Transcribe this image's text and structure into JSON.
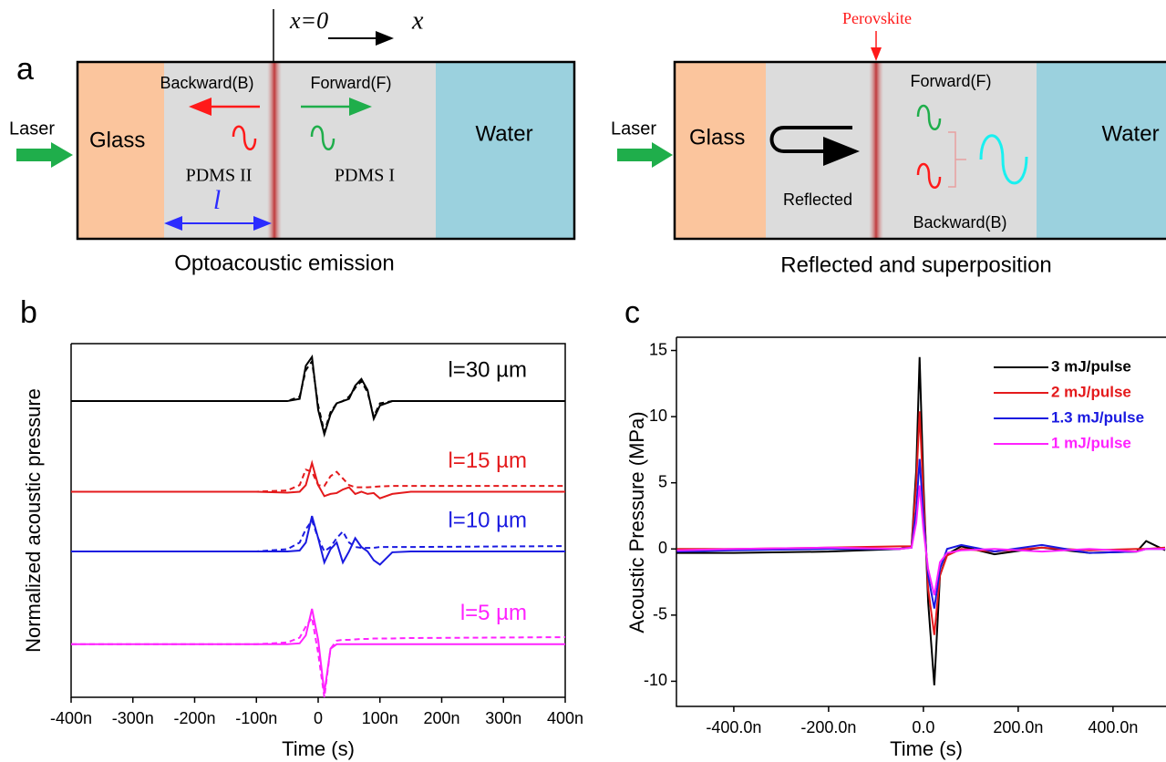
{
  "diagram": {
    "panel_label": "a",
    "left": {
      "x_origin": "x=0",
      "x_axis": "x",
      "backward": "Backward(B)",
      "forward": "Forward(F)",
      "laser": "Laser",
      "glass": "Glass",
      "water": "Water",
      "pdms_2": "PDMS II",
      "pdms_1": "PDMS I",
      "thickness": "l",
      "caption": "Optoacoustic emission"
    },
    "right": {
      "perovskite": "Perovskite",
      "laser": "Laser",
      "glass": "Glass",
      "reflected": "Reflected",
      "forward": "Forward(F)",
      "backward": "Backward(B)",
      "water": "Water",
      "caption": "Reflected and superposition"
    }
  },
  "chart_data": [
    {
      "type": "line",
      "panel_label": "b",
      "xlabel": "Time (s)",
      "ylabel": "Normalized acoustic pressure",
      "x": [
        -4e-07,
        -1e-07,
        -5e-08,
        -3e-08,
        -2e-08,
        -1e-08,
        0,
        1e-08,
        2e-08,
        3e-08,
        4e-08,
        5e-08,
        6e-08,
        7e-08,
        8e-08,
        9e-08,
        1e-07,
        1.2e-07,
        1.5e-07,
        4e-07
      ],
      "xlim": [
        -4e-07,
        4e-07
      ],
      "xticks": [
        {
          "value": -4e-07,
          "label": "-400n"
        },
        {
          "value": -3e-07,
          "label": "-300n"
        },
        {
          "value": -2e-07,
          "label": "-200n"
        },
        {
          "value": -1e-07,
          "label": "-100n"
        },
        0,
        {
          "value": 1e-07,
          "label": "100n"
        },
        {
          "value": 2e-07,
          "label": "200n"
        },
        {
          "value": 3e-07,
          "label": "300n"
        },
        {
          "value": 4e-07,
          "label": "400n"
        }
      ],
      "ylim": [
        0,
        8
      ],
      "series": [
        {
          "name": "l=30 µm",
          "color": "#000000",
          "values": [
            6.7,
            6.7,
            6.7,
            6.75,
            7.5,
            7.7,
            6.5,
            5.95,
            6.4,
            6.65,
            6.7,
            6.75,
            7.05,
            7.2,
            6.95,
            6.3,
            6.6,
            6.7,
            6.7,
            6.7
          ]
        },
        {
          "color": "#000000",
          "dashed": true,
          "values": [
            6.7,
            6.7,
            6.7,
            6.8,
            7.4,
            7.6,
            6.6,
            6.0,
            6.45,
            6.65,
            6.7,
            6.8,
            7.0,
            7.15,
            6.9,
            6.35,
            6.65,
            6.7,
            6.7,
            6.7
          ]
        },
        {
          "name": "l=15 µm",
          "color": "#e41a1c",
          "values": [
            4.65,
            4.65,
            4.63,
            4.65,
            4.8,
            5.3,
            4.8,
            4.55,
            4.6,
            4.62,
            4.7,
            4.75,
            4.6,
            4.65,
            4.6,
            4.62,
            4.5,
            4.6,
            4.65,
            4.65
          ]
        },
        {
          "color": "#e41a1c",
          "dashed": true,
          "values": [
            4.65,
            4.65,
            4.68,
            4.8,
            5.15,
            5.1,
            4.8,
            4.78,
            5.0,
            5.1,
            4.95,
            4.8,
            4.75,
            4.75,
            4.75,
            4.76,
            4.77,
            4.78,
            4.78,
            4.78
          ]
        },
        {
          "name": "l=10 µm",
          "color": "#1a1ae0",
          "values": [
            3.3,
            3.3,
            3.3,
            3.32,
            3.5,
            4.1,
            3.6,
            3.05,
            3.35,
            3.5,
            3.05,
            3.3,
            3.6,
            3.4,
            3.3,
            3.1,
            3.0,
            3.28,
            3.3,
            3.3
          ]
        },
        {
          "color": "#1a1ae0",
          "dashed": true,
          "values": [
            3.3,
            3.3,
            3.35,
            3.5,
            3.8,
            4.0,
            3.6,
            3.3,
            3.4,
            3.6,
            3.75,
            3.5,
            3.4,
            3.38,
            3.38,
            3.38,
            3.4,
            3.4,
            3.4,
            3.42
          ]
        },
        {
          "name": "l=5 µm",
          "color": "#ff22ff",
          "values": [
            1.2,
            1.2,
            1.2,
            1.22,
            1.4,
            2.0,
            1.3,
            0.1,
            1.1,
            1.2,
            1.2,
            1.2,
            1.2,
            1.2,
            1.2,
            1.2,
            1.2,
            1.2,
            1.2,
            1.2
          ]
        },
        {
          "color": "#ff22ff",
          "dashed": true,
          "values": [
            1.2,
            1.2,
            1.24,
            1.35,
            1.6,
            1.8,
            1.0,
            0.0,
            1.1,
            1.28,
            1.3,
            1.3,
            1.31,
            1.32,
            1.32,
            1.33,
            1.33,
            1.33,
            1.34,
            1.36
          ]
        }
      ]
    },
    {
      "type": "line",
      "panel_label": "c",
      "xlabel": "Time (s)",
      "ylabel": "Acoustic Pressure (MPa)",
      "legend": "upper right",
      "x": [
        -5.2e-07,
        -4e-07,
        -2e-07,
        -5e-08,
        -2.5e-08,
        -1.5e-08,
        -8e-09,
        0,
        1e-08,
        2.3e-08,
        3.5e-08,
        5e-08,
        8e-08,
        1.5e-07,
        2.5e-07,
        3.5e-07,
        4.5e-07,
        4.7e-07,
        5.1e-07
      ],
      "xlim": [
        -5.21e-07,
        5.33e-07
      ],
      "xticks": [
        {
          "value": -4e-07,
          "label": "-400.0n"
        },
        {
          "value": -2e-07,
          "label": "-200.0n"
        },
        {
          "value": 0,
          "label": "0.0"
        },
        {
          "value": 2e-07,
          "label": "200.0n"
        },
        {
          "value": 4e-07,
          "label": "400.0n"
        }
      ],
      "ylim": [
        -11.9,
        16
      ],
      "yticks": [
        -10,
        -5,
        0,
        5,
        10,
        15
      ],
      "series": [
        {
          "name": "3 mJ/pulse",
          "color": "#000000",
          "values": [
            -0.3,
            -0.3,
            -0.2,
            0,
            0.2,
            6,
            14.5,
            5,
            -4,
            -10.3,
            -2,
            -0.4,
            0.2,
            -0.4,
            0.1,
            -0.3,
            -0.2,
            0.6,
            -0.1
          ]
        },
        {
          "name": "2 mJ/pulse",
          "color": "#e41a1c",
          "values": [
            0,
            0,
            0.1,
            0.2,
            0.2,
            5,
            10.4,
            4,
            -3,
            -6.5,
            -2,
            -0.5,
            0,
            -0.2,
            0.1,
            -0.1,
            0,
            0,
            0.1
          ]
        },
        {
          "name": "1.3 mJ/pulse",
          "color": "#1a1ae0",
          "values": [
            -0.2,
            -0.1,
            0,
            0,
            0.1,
            3,
            6.8,
            2.5,
            -2,
            -4.5,
            -1.5,
            0,
            0.3,
            -0.2,
            0.3,
            -0.3,
            -0.2,
            0,
            0
          ]
        },
        {
          "name": "1 mJ/pulse",
          "color": "#ff22ff",
          "values": [
            -0.1,
            0,
            0.1,
            0,
            0.1,
            2,
            4.8,
            1.5,
            -1.5,
            -3.5,
            -1,
            -0.3,
            -0.1,
            0,
            -0.2,
            0,
            -0.2,
            0,
            0
          ]
        }
      ]
    }
  ]
}
